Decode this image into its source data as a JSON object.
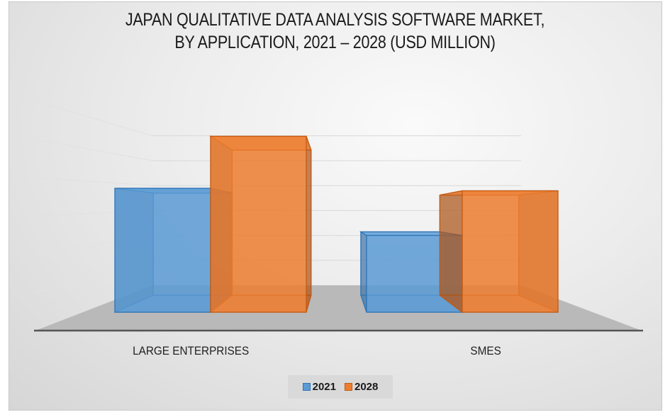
{
  "chart_data": {
    "type": "bar",
    "title": "JAPAN QUALITATIVE DATA ANALYSIS SOFTWARE MARKET,",
    "subtitle": "BY APPLICATION, 2021 – 2028 (USD MILLION)",
    "categories": [
      "LARGE ENTERPRISES",
      "SMES"
    ],
    "series": [
      {
        "name": "2021",
        "values": [
          5.0,
          3.1
        ],
        "color": "#5b9bd5"
      },
      {
        "name": "2028",
        "values": [
          7.1,
          4.9
        ],
        "color": "#ed7d31"
      }
    ],
    "ylim": [
      0,
      7.5
    ],
    "grid": true,
    "legend": "bottom",
    "style": "3d-clustered-column"
  }
}
